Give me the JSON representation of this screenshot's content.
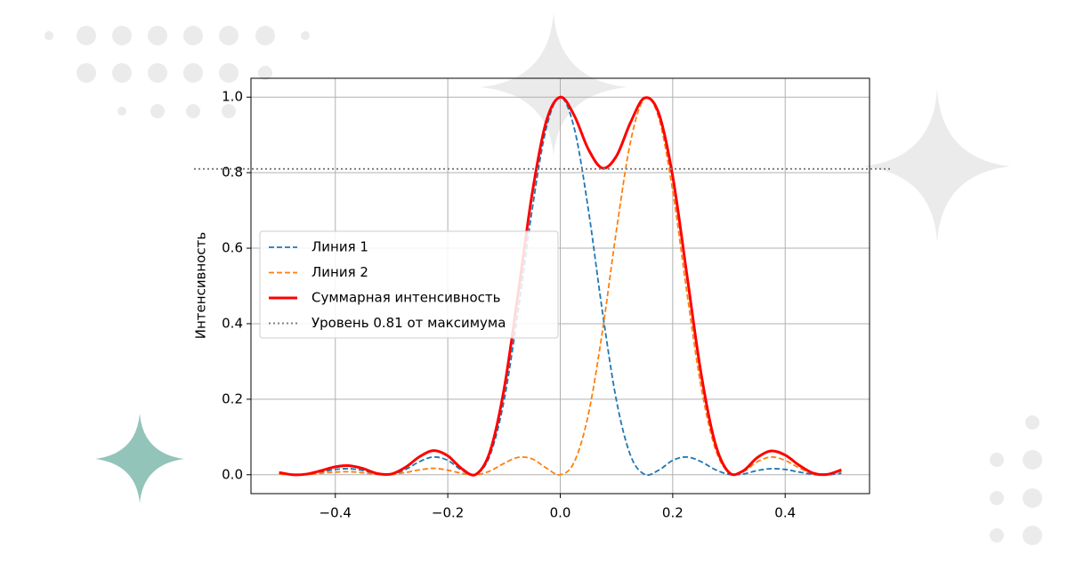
{
  "chart_data": {
    "type": "line",
    "ylabel": "Интенсивность",
    "x": [
      -0.5,
      -0.475,
      -0.45,
      -0.425,
      -0.4,
      -0.375,
      -0.35,
      -0.325,
      -0.3,
      -0.275,
      -0.25,
      -0.225,
      -0.2,
      -0.175,
      -0.15,
      -0.125,
      -0.1,
      -0.075,
      -0.05,
      -0.025,
      0,
      0.025,
      0.05,
      0.075,
      0.1,
      0.125,
      0.15,
      0.175,
      0.2,
      0.225,
      0.25,
      0.275,
      0.3,
      0.325,
      0.35,
      0.375,
      0.4,
      0.425,
      0.45,
      0.475,
      0.5
    ],
    "series": [
      {
        "name": "Линия 1",
        "color": "#1f77b4",
        "style": "dashed",
        "values": [
          0.004,
          0.0,
          0.001,
          0.007,
          0.014,
          0.016,
          0.011,
          0.002,
          0.001,
          0.014,
          0.035,
          0.047,
          0.038,
          0.012,
          0.001,
          0.051,
          0.196,
          0.432,
          0.702,
          0.917,
          1,
          0.917,
          0.702,
          0.432,
          0.196,
          0.051,
          0.001,
          0.012,
          0.038,
          0.047,
          0.035,
          0.014,
          0.001,
          0.002,
          0.011,
          0.016,
          0.014,
          0.007,
          0.001,
          0.0,
          0.004
        ]
      },
      {
        "name": "Линия 2",
        "color": "#ff7f0e",
        "style": "dashed",
        "values": [
          0.002,
          0.0,
          0.001,
          0.004,
          0.007,
          0.008,
          0.005,
          0.001,
          0.001,
          0.006,
          0.013,
          0.017,
          0.012,
          0.004,
          0.0,
          0.01,
          0.03,
          0.046,
          0.042,
          0.018,
          0,
          0.034,
          0.16,
          0.38,
          0.648,
          0.882,
          0.997,
          0.946,
          0.752,
          0.485,
          0.237,
          0.072,
          0.005,
          0.008,
          0.034,
          0.047,
          0.038,
          0.018,
          0.003,
          0.001,
          0.009
        ]
      },
      {
        "name": "Суммарная интенсивность",
        "color": "#ff0000",
        "style": "solid",
        "values": [
          0.006,
          0.0,
          0.002,
          0.011,
          0.021,
          0.024,
          0.016,
          0.003,
          0.002,
          0.02,
          0.048,
          0.064,
          0.05,
          0.016,
          0.001,
          0.061,
          0.226,
          0.478,
          0.744,
          0.935,
          1.0,
          0.951,
          0.862,
          0.812,
          0.844,
          0.933,
          0.998,
          0.958,
          0.79,
          0.532,
          0.272,
          0.086,
          0.006,
          0.01,
          0.045,
          0.063,
          0.052,
          0.025,
          0.004,
          0.001,
          0.013
        ]
      }
    ],
    "reference_line": {
      "name": "Уровень 0.81 от максимума",
      "value": 0.81,
      "color": "#808080"
    },
    "xlim": [
      -0.55,
      0.55
    ],
    "ylim": [
      -0.05,
      1.05
    ],
    "xticks": [
      {
        "value": -0.4,
        "label": "−0.4"
      },
      {
        "value": -0.2,
        "label": "−0.2"
      },
      {
        "value": 0,
        "label": "0.0"
      },
      0.2,
      0.4
    ],
    "yticks": [
      {
        "value": 0,
        "label": "0.0"
      },
      0.2,
      0.4,
      0.6,
      0.8,
      {
        "value": 1,
        "label": "1.0"
      }
    ],
    "grid": true,
    "legend": "center-left"
  }
}
